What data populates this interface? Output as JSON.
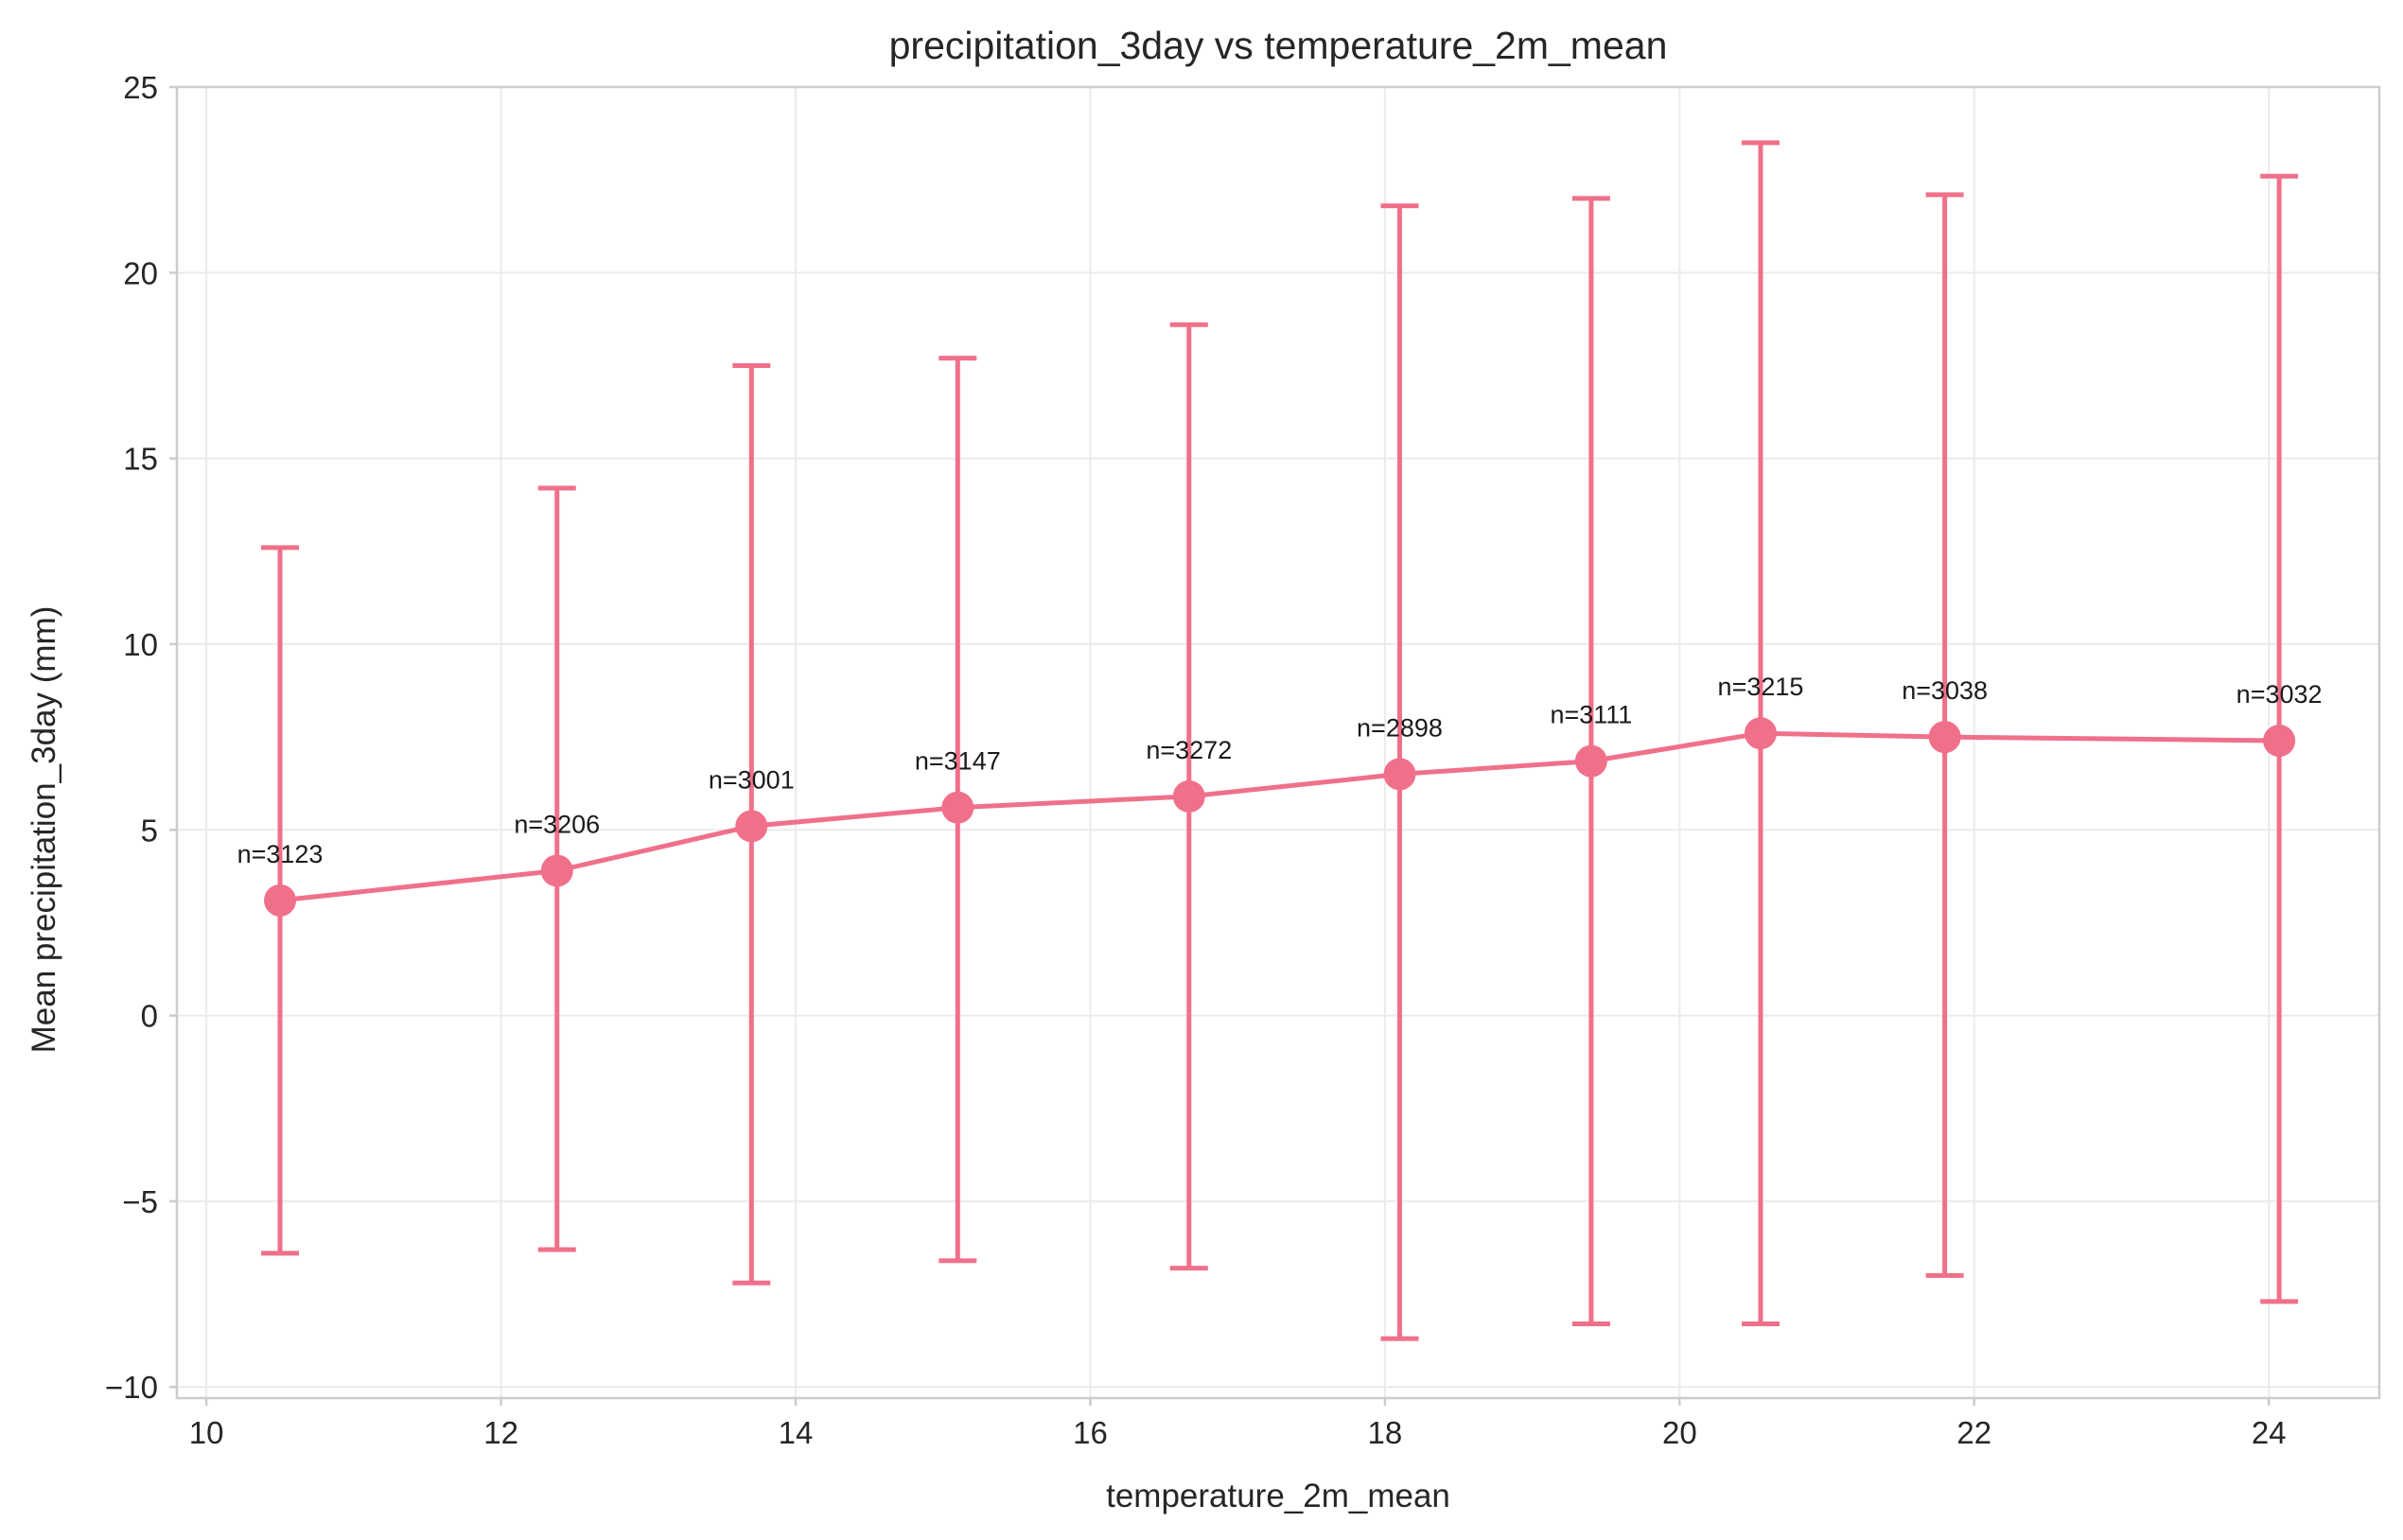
{
  "chart_data": {
    "type": "line",
    "title": "precipitation_3day vs temperature_2m_mean",
    "xlabel": "temperature_2m_mean",
    "ylabel": "Mean precipitation_3day (mm)",
    "xlim": [
      9.8,
      24.75
    ],
    "ylim": [
      -10.3,
      25
    ],
    "xticks": [
      10,
      12,
      14,
      16,
      18,
      20,
      22,
      24
    ],
    "yticks": [
      -10,
      -5,
      0,
      5,
      10,
      15,
      20,
      25
    ],
    "xtick_labels": [
      "10",
      "12",
      "14",
      "16",
      "18",
      "20",
      "22",
      "24"
    ],
    "ytick_labels": [
      "−10",
      "−5",
      "0",
      "5",
      "10",
      "15",
      "20",
      "25"
    ],
    "grid": true,
    "error_bars": true,
    "color": "#f0708a",
    "series": [
      {
        "x": [
          10.5,
          12.38,
          13.7,
          15.1,
          16.67,
          18.1,
          19.4,
          20.55,
          21.8,
          24.07
        ],
        "y": [
          3.1,
          3.9,
          5.1,
          5.6,
          5.9,
          6.5,
          6.85,
          7.6,
          7.5,
          7.4
        ],
        "yerr_low": [
          -6.4,
          -6.3,
          -7.2,
          -6.6,
          -6.8,
          -8.7,
          -8.3,
          -8.3,
          -7.0,
          -7.7
        ],
        "yerr_high": [
          12.6,
          14.2,
          17.5,
          17.7,
          18.6,
          21.8,
          22.0,
          23.5,
          22.1,
          22.6
        ]
      }
    ],
    "annotations": [
      "n=3123",
      "n=3206",
      "n=3001",
      "n=3147",
      "n=3272",
      "n=2898",
      "n=3111",
      "n=3215",
      "n=3038",
      "n=3032"
    ]
  }
}
